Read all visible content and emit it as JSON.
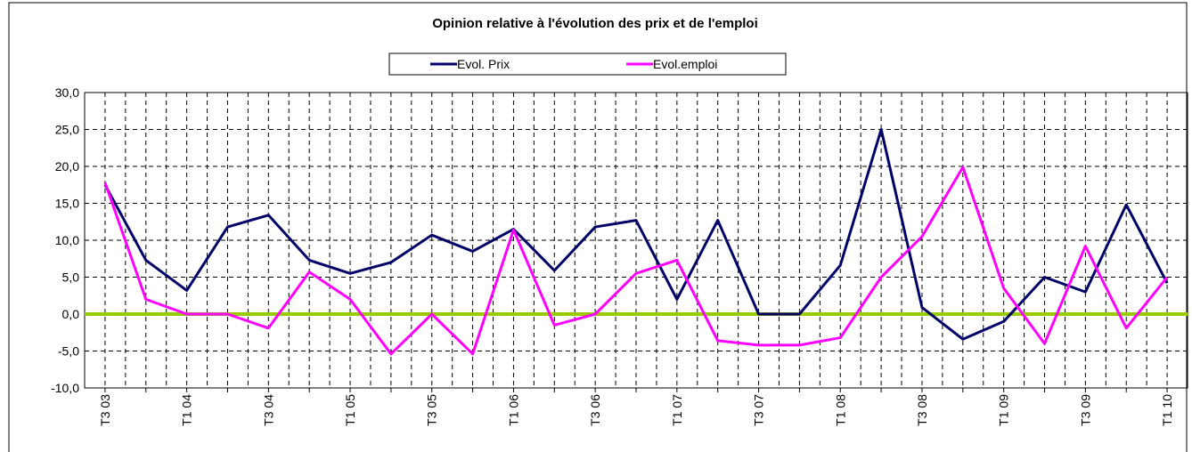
{
  "chart_data": {
    "type": "line",
    "title": "Opinion relative à l'évolution des prix et de l'emploi",
    "categories": [
      "T3 03",
      null,
      "T1 04",
      null,
      "T3 04",
      null,
      "T1 05",
      null,
      "T3 05",
      null,
      "T1 06",
      null,
      "T3 06",
      null,
      "T1 07",
      null,
      "T3 07",
      null,
      "T1 08",
      null,
      "T3 08",
      null,
      "T1 09",
      null,
      "T3 09",
      null,
      "T1 10"
    ],
    "series": [
      {
        "name": "Evol. Prix",
        "color": "#000066",
        "values": [
          17.5,
          7.3,
          3.2,
          11.8,
          13.4,
          7.3,
          5.5,
          7.0,
          10.7,
          8.5,
          11.5,
          5.9,
          11.8,
          12.7,
          2.0,
          12.7,
          0,
          0,
          6.6,
          25.0,
          0.9,
          -3.4,
          -1.0,
          5.0,
          3.0,
          14.8,
          4.2
        ]
      },
      {
        "name": "Evol.emploi",
        "color": "#ff00ff",
        "values": [
          17.8,
          2.0,
          0,
          0,
          -1.9,
          5.7,
          2.0,
          -5.4,
          0,
          -5.4,
          11.4,
          -1.5,
          0,
          5.5,
          7.3,
          -3.6,
          -4.2,
          -4.2,
          -3.2,
          5.0,
          10.5,
          19.9,
          3.5,
          -4.0,
          9.2,
          -1.9,
          5.0
        ]
      }
    ],
    "ylim": [
      -10,
      30
    ],
    "yticks": [
      {
        "value": -10,
        "label": "-10,0"
      },
      {
        "value": -5,
        "label": "-5,0"
      },
      {
        "value": 0,
        "label": "0,0"
      },
      {
        "value": 5,
        "label": "5,0"
      },
      {
        "value": 10,
        "label": "10,0"
      },
      {
        "value": 15,
        "label": "15,0"
      },
      {
        "value": 20,
        "label": "20,0"
      },
      {
        "value": 25,
        "label": "25,0"
      },
      {
        "value": 30,
        "label": "30,0"
      }
    ],
    "grid": true,
    "zero_line_color": "#99cc00",
    "legend": "top"
  }
}
